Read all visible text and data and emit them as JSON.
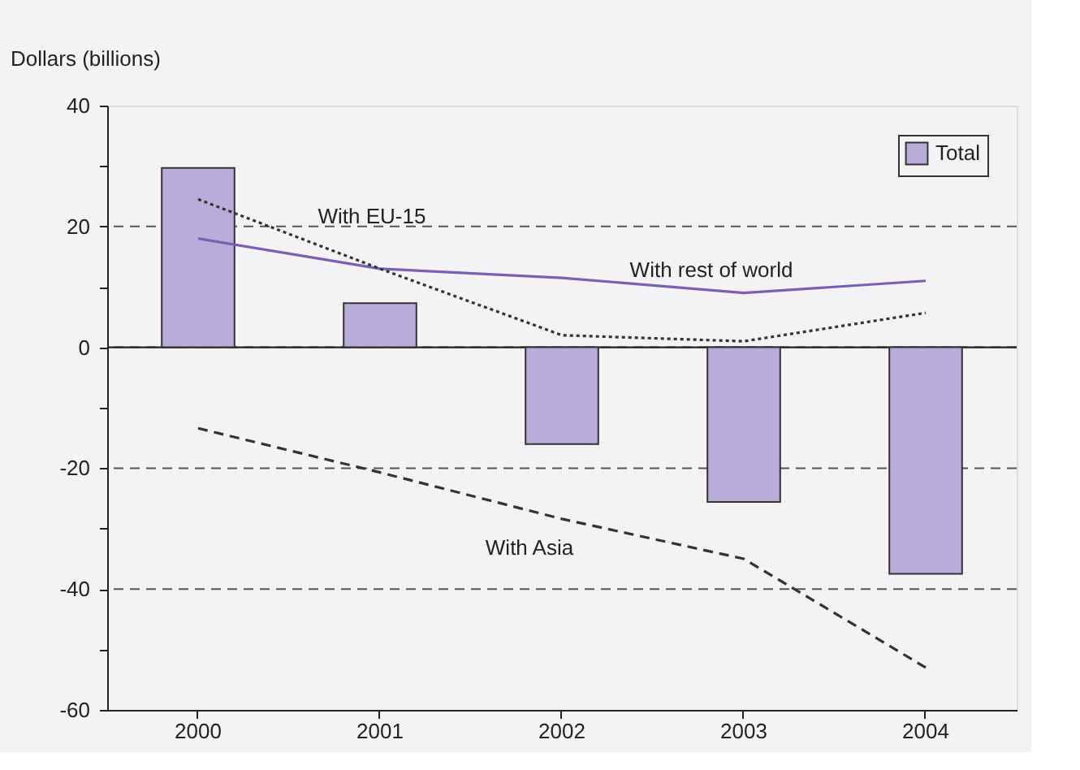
{
  "chart_data": {
    "type": "bar",
    "ylabel": "Dollars (billions)",
    "categories": [
      "2000",
      "2001",
      "2002",
      "2003",
      "2004"
    ],
    "series": [
      {
        "name": "Total",
        "color": "#b9acd8",
        "values": [
          29.7,
          7.3,
          -16,
          -25.6,
          -37.5
        ]
      },
      {
        "name": "With rest of world",
        "type": "line",
        "color": "#7b5fb5",
        "line_style": "solid",
        "values": [
          18,
          13,
          11.5,
          9,
          11
        ]
      },
      {
        "name": "With EU-15",
        "type": "line",
        "color": "#333333",
        "line_style": "dotted",
        "values": [
          24.5,
          13,
          2,
          1,
          5.7
        ]
      },
      {
        "name": "With Asia",
        "type": "line",
        "color": "#333333",
        "line_style": "dashed",
        "values": [
          -13.4,
          -20.7,
          -28.4,
          -35,
          -53
        ]
      }
    ],
    "ylim": [
      -60,
      40
    ],
    "yticks": [
      -60,
      {
        "value": -50,
        "label": null
      },
      -40,
      {
        "value": -30,
        "label": null
      },
      -20,
      {
        "value": -10,
        "label": null
      },
      0,
      {
        "value": 10,
        "label": null
      },
      20,
      {
        "value": 30,
        "label": null
      },
      40
    ],
    "grid": "y",
    "legend": "top right",
    "ref_lines": [
      {
        "axis": "y",
        "value": 0,
        "color": "#222222",
        "line_style": "solid"
      }
    ]
  }
}
